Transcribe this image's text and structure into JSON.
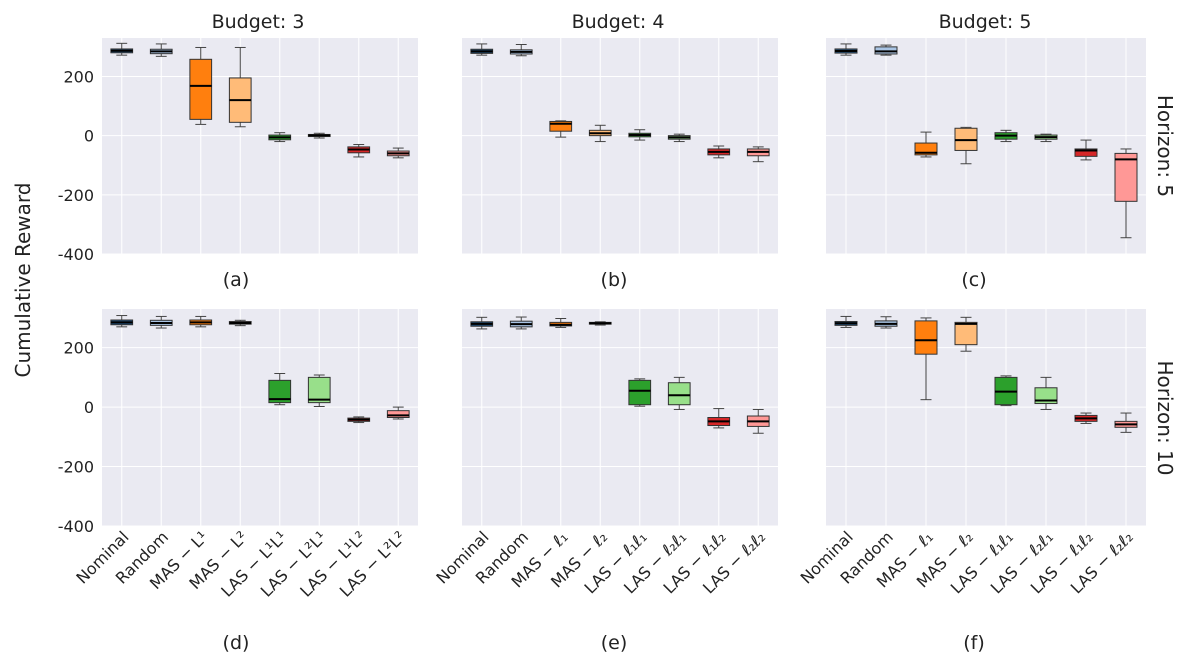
{
  "figure": {
    "ylabel": "Cumulative Reward",
    "row_labels": [
      "Horizon: 5",
      "Horizon: 10"
    ],
    "column_titles": [
      "Budget: 3",
      "Budget: 4",
      "Budget: 5"
    ],
    "panel_letters": [
      "(a)",
      "(b)",
      "(c)",
      "(d)",
      "(e)",
      "(f)"
    ],
    "colors": {
      "nominal": "#1f4e79",
      "random": "#a9c4e4",
      "mas1": "#ff7f0e",
      "mas2": "#ffbb78",
      "las11": "#2ca02c",
      "las21": "#98df8a",
      "las12": "#d62728",
      "las22": "#ff9896",
      "panel_bg": "#eaeaf2",
      "grid": "#ffffff"
    }
  },
  "tick_labels": {
    "a": [
      "Nominal",
      "Random",
      "MAS − L¹",
      "MAS − L²",
      "LAS − L¹L¹",
      "LAS − L²L¹",
      "LAS − L¹L²",
      "LAS − L²L²"
    ],
    "b": [
      "Nominal",
      "Random",
      "MAS − ℓ₁",
      "MAS − ℓ₂",
      "LAS − ℓ₁ℓ₁",
      "LAS − ℓ₂ℓ₁",
      "LAS − ℓ₁ℓ₂",
      "LAS − ℓ₂ℓ₂"
    ],
    "c": [
      "Nominal",
      "Random",
      "MAS − ℓ₁",
      "MAS − ℓ₂",
      "LAS − ℓ₁ℓ₁",
      "LAS − ℓ₂ℓ₁",
      "LAS − ℓ₁ℓ₂",
      "LAS − ℓ₂ℓ₂"
    ]
  },
  "chart_data": [
    {
      "panel": "(a)",
      "type": "box",
      "title": "Budget: 3",
      "row": "Horizon: 5",
      "ylim": [
        -400,
        330
      ],
      "yticks": [
        -400,
        -200,
        0,
        200
      ],
      "boxes": [
        {
          "min": 272,
          "q1": 280,
          "median": 287,
          "q3": 293,
          "max": 312
        },
        {
          "min": 268,
          "q1": 277,
          "median": 285,
          "q3": 292,
          "max": 310
        },
        {
          "min": 38,
          "q1": 55,
          "median": 168,
          "q3": 258,
          "max": 298
        },
        {
          "min": 30,
          "q1": 45,
          "median": 120,
          "q3": 195,
          "max": 298
        },
        {
          "min": -20,
          "q1": -14,
          "median": -6,
          "q3": 2,
          "max": 10
        },
        {
          "min": -8,
          "q1": -3,
          "median": 1,
          "q3": 4,
          "max": 8
        },
        {
          "min": -72,
          "q1": -58,
          "median": -47,
          "q3": -38,
          "max": -30
        },
        {
          "min": -75,
          "q1": -68,
          "median": -60,
          "q3": -52,
          "max": -42
        }
      ]
    },
    {
      "panel": "(b)",
      "type": "box",
      "title": "Budget: 4",
      "row": "Horizon: 5",
      "ylim": [
        -400,
        330
      ],
      "yticks": [
        -400,
        -200,
        0,
        200
      ],
      "boxes": [
        {
          "min": 272,
          "q1": 278,
          "median": 285,
          "q3": 292,
          "max": 310
        },
        {
          "min": 270,
          "q1": 276,
          "median": 283,
          "q3": 290,
          "max": 308
        },
        {
          "min": -5,
          "q1": 15,
          "median": 40,
          "q3": 48,
          "max": 50
        },
        {
          "min": -20,
          "q1": 0,
          "median": 8,
          "q3": 18,
          "max": 35
        },
        {
          "min": -15,
          "q1": -4,
          "median": 2,
          "q3": 8,
          "max": 20
        },
        {
          "min": -20,
          "q1": -12,
          "median": -6,
          "q3": 0,
          "max": 5
        },
        {
          "min": -75,
          "q1": -65,
          "median": -55,
          "q3": -45,
          "max": -35
        },
        {
          "min": -88,
          "q1": -68,
          "median": -55,
          "q3": -45,
          "max": -38
        }
      ]
    },
    {
      "panel": "(c)",
      "type": "box",
      "title": "Budget: 5",
      "row": "Horizon: 5",
      "ylim": [
        -400,
        330
      ],
      "yticks": [
        -400,
        -200,
        0,
        200
      ],
      "boxes": [
        {
          "min": 272,
          "q1": 279,
          "median": 286,
          "q3": 293,
          "max": 310
        },
        {
          "min": 272,
          "q1": 276,
          "median": 285,
          "q3": 300,
          "max": 306
        },
        {
          "min": -72,
          "q1": -65,
          "median": -58,
          "q3": -25,
          "max": 12
        },
        {
          "min": -95,
          "q1": -50,
          "median": -15,
          "q3": 25,
          "max": 28
        },
        {
          "min": -20,
          "q1": -12,
          "median": 0,
          "q3": 10,
          "max": 18
        },
        {
          "min": -20,
          "q1": -12,
          "median": -5,
          "q3": 2,
          "max": 5
        },
        {
          "min": -82,
          "q1": -70,
          "median": -50,
          "q3": -45,
          "max": -15
        },
        {
          "min": -345,
          "q1": -222,
          "median": -80,
          "q3": -60,
          "max": -45
        }
      ]
    },
    {
      "panel": "(d)",
      "type": "box",
      "title": "Budget: 3",
      "row": "Horizon: 10",
      "ylim": [
        -400,
        330
      ],
      "yticks": [
        -400,
        -200,
        0,
        200
      ],
      "boxes": [
        {
          "min": 270,
          "q1": 277,
          "median": 285,
          "q3": 293,
          "max": 308
        },
        {
          "min": 266,
          "q1": 275,
          "median": 283,
          "q3": 292,
          "max": 305
        },
        {
          "min": 270,
          "q1": 277,
          "median": 285,
          "q3": 293,
          "max": 305
        },
        {
          "min": 274,
          "q1": 279,
          "median": 283,
          "q3": 288,
          "max": 292
        },
        {
          "min": 8,
          "q1": 15,
          "median": 27,
          "q3": 90,
          "max": 113
        },
        {
          "min": 2,
          "q1": 15,
          "median": 25,
          "q3": 100,
          "max": 108
        },
        {
          "min": -52,
          "q1": -48,
          "median": -42,
          "q3": -37,
          "max": -33
        },
        {
          "min": -40,
          "q1": -35,
          "median": -28,
          "q3": -12,
          "max": 0
        }
      ]
    },
    {
      "panel": "(e)",
      "type": "box",
      "title": "Budget: 4",
      "row": "Horizon: 10",
      "ylim": [
        -400,
        330
      ],
      "yticks": [
        -400,
        -200,
        0,
        200
      ],
      "boxes": [
        {
          "min": 263,
          "q1": 272,
          "median": 280,
          "q3": 287,
          "max": 302
        },
        {
          "min": 263,
          "q1": 270,
          "median": 279,
          "q3": 289,
          "max": 303
        },
        {
          "min": 268,
          "q1": 273,
          "median": 277,
          "q3": 285,
          "max": 298
        },
        {
          "min": 276,
          "q1": 279,
          "median": 282,
          "q3": 285,
          "max": 287
        },
        {
          "min": 3,
          "q1": 8,
          "median": 55,
          "q3": 90,
          "max": 95
        },
        {
          "min": -8,
          "q1": 8,
          "median": 40,
          "q3": 82,
          "max": 100
        },
        {
          "min": -70,
          "q1": -62,
          "median": -48,
          "q3": -35,
          "max": -5
        },
        {
          "min": -88,
          "q1": -65,
          "median": -48,
          "q3": -30,
          "max": -8
        }
      ]
    },
    {
      "panel": "(f)",
      "type": "box",
      "title": "Budget: 5",
      "row": "Horizon: 10",
      "ylim": [
        -400,
        330
      ],
      "yticks": [
        -400,
        -200,
        0,
        200
      ],
      "boxes": [
        {
          "min": 268,
          "q1": 275,
          "median": 282,
          "q3": 288,
          "max": 305
        },
        {
          "min": 266,
          "q1": 272,
          "median": 280,
          "q3": 290,
          "max": 304
        },
        {
          "min": 25,
          "q1": 178,
          "median": 225,
          "q3": 290,
          "max": 300
        },
        {
          "min": 188,
          "q1": 210,
          "median": 280,
          "q3": 285,
          "max": 302
        },
        {
          "min": 5,
          "q1": 8,
          "median": 52,
          "q3": 100,
          "max": 105
        },
        {
          "min": -8,
          "q1": 12,
          "median": 22,
          "q3": 65,
          "max": 100
        },
        {
          "min": -55,
          "q1": -48,
          "median": -38,
          "q3": -28,
          "max": -20
        },
        {
          "min": -85,
          "q1": -68,
          "median": -58,
          "q3": -48,
          "max": -20
        }
      ]
    }
  ]
}
